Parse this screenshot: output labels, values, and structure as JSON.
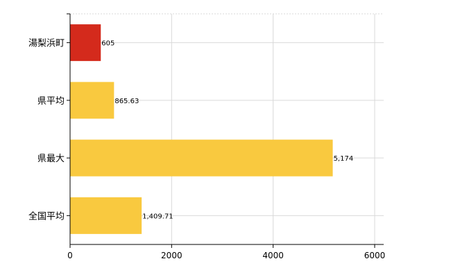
{
  "chart_data": {
    "type": "bar",
    "orientation": "horizontal",
    "categories": [
      "湯梨浜町",
      "県平均",
      "県最大",
      "全国平均"
    ],
    "values": [
      605,
      865.63,
      5174,
      1409.71
    ],
    "value_labels": [
      "605",
      "865.63",
      "5,174",
      "1,409.71"
    ],
    "bar_colors": [
      "#d42a1c",
      "#f9c93f",
      "#f9c93f",
      "#f9c93f"
    ],
    "xlim": [
      0,
      6000
    ],
    "xticks": [
      0,
      2000,
      4000,
      6000
    ],
    "xtick_labels": [
      "0",
      "2000",
      "4000",
      "6000"
    ],
    "grid": true,
    "legend": "none",
    "title": "",
    "xlabel": "",
    "ylabel": ""
  }
}
